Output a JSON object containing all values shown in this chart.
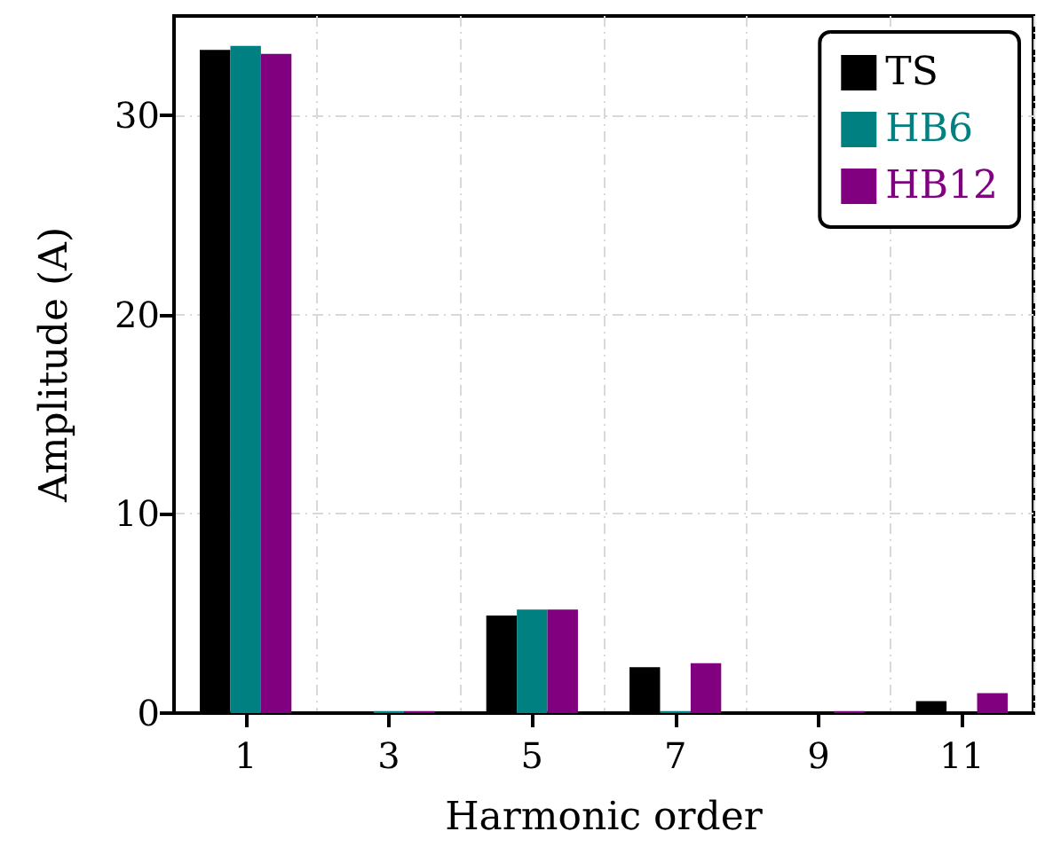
{
  "chart_data": {
    "type": "bar",
    "xlabel": "Harmonic order",
    "ylabel": "Amplitude (A)",
    "categories": [
      "1",
      "3",
      "5",
      "7",
      "9",
      "11"
    ],
    "series": [
      {
        "name": "TS",
        "color": "#000000",
        "values": [
          33.3,
          0,
          4.9,
          2.3,
          0,
          0.6
        ]
      },
      {
        "name": "HB6",
        "color": "#008080",
        "values": [
          33.5,
          0.1,
          5.2,
          0.1,
          0,
          0
        ]
      },
      {
        "name": "HB12",
        "color": "#800080",
        "values": [
          33.1,
          0.1,
          5.2,
          2.5,
          0.1,
          1.0
        ]
      }
    ],
    "ylim": [
      0,
      35
    ],
    "yticks": [
      0,
      10,
      20,
      30
    ],
    "grid": true,
    "legend": "top right"
  }
}
